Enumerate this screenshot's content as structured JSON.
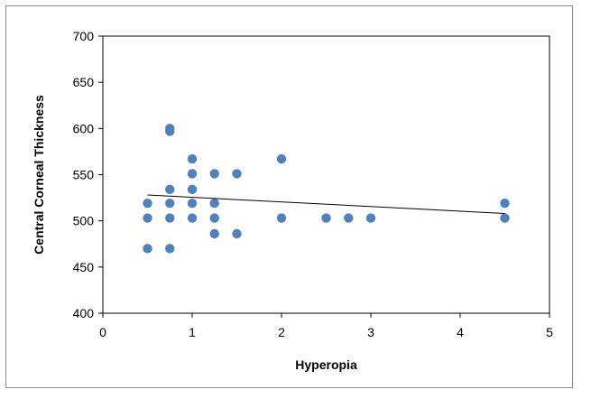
{
  "chart_data": {
    "type": "scatter",
    "title": "",
    "xlabel": "Hyperopia",
    "ylabel": "Central Corneal Thickness",
    "xlim": [
      0,
      5
    ],
    "ylim": [
      400,
      700
    ],
    "xticks": [
      0,
      1,
      2,
      3,
      4,
      5
    ],
    "yticks": [
      400,
      450,
      500,
      550,
      600,
      650,
      700
    ],
    "grid": false,
    "legend": "none",
    "marker_color": "#4f81bd",
    "trendline": {
      "type": "linear",
      "x": [
        0.5,
        4.5
      ],
      "y": [
        528,
        508
      ],
      "color": "#000000"
    },
    "points": [
      {
        "x": 0.5,
        "y": 519
      },
      {
        "x": 0.5,
        "y": 503
      },
      {
        "x": 0.5,
        "y": 470
      },
      {
        "x": 0.75,
        "y": 600
      },
      {
        "x": 0.75,
        "y": 597
      },
      {
        "x": 0.75,
        "y": 534
      },
      {
        "x": 0.75,
        "y": 519
      },
      {
        "x": 0.75,
        "y": 503
      },
      {
        "x": 0.75,
        "y": 470
      },
      {
        "x": 1.0,
        "y": 567
      },
      {
        "x": 1.0,
        "y": 551
      },
      {
        "x": 1.0,
        "y": 534
      },
      {
        "x": 1.0,
        "y": 519
      },
      {
        "x": 1.0,
        "y": 503
      },
      {
        "x": 1.25,
        "y": 551
      },
      {
        "x": 1.25,
        "y": 519
      },
      {
        "x": 1.25,
        "y": 503
      },
      {
        "x": 1.25,
        "y": 486
      },
      {
        "x": 1.5,
        "y": 551
      },
      {
        "x": 1.5,
        "y": 486
      },
      {
        "x": 2.0,
        "y": 567
      },
      {
        "x": 2.0,
        "y": 503
      },
      {
        "x": 2.5,
        "y": 503
      },
      {
        "x": 2.75,
        "y": 503
      },
      {
        "x": 3.0,
        "y": 503
      },
      {
        "x": 4.5,
        "y": 519
      },
      {
        "x": 4.5,
        "y": 503
      }
    ]
  }
}
